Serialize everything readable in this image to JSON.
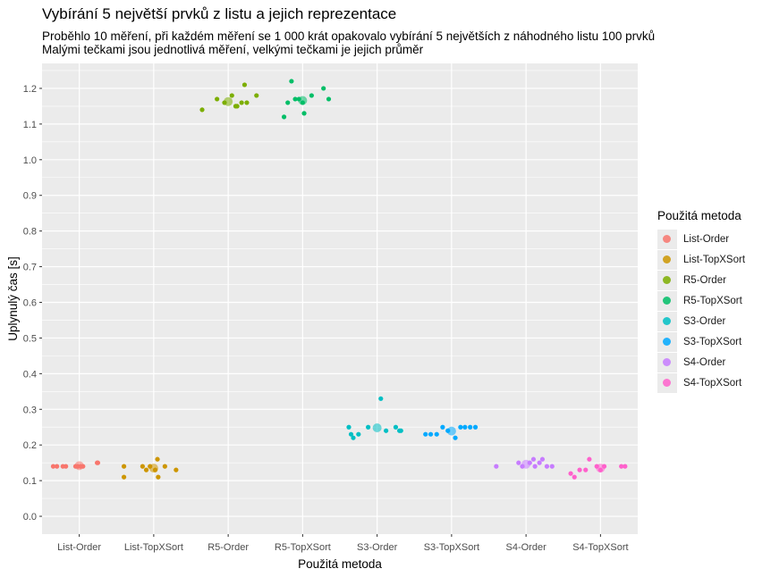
{
  "title": "Vybírání 5 největší prvků z listu a jejich reprezentace",
  "subtitle_lines": [
    "Proběhlo 10 měření, při každém měření se 1 000 krát opakovalo vybírání 5 největších z náhodného listu 100 prvků",
    "Malými tečkami jsou jednotlivá měření, velkými tečkami je jejich průměr"
  ],
  "chart_data": {
    "type": "scatter",
    "title": "Vybírání 5 největší prvků z listu a jejich reprezentace",
    "xlabel": "Použitá metoda",
    "ylabel": "Uplynulý čas [s]",
    "ylim": [
      -0.05,
      1.27
    ],
    "yticks": [
      0.0,
      0.1,
      0.2,
      0.3,
      0.4,
      0.5,
      0.6,
      0.7,
      0.8,
      0.9,
      1.0,
      1.1,
      1.2
    ],
    "ytick_labels": [
      "0.0",
      "0.1",
      "0.2",
      "0.3",
      "0.4",
      "0.5",
      "0.6",
      "0.7",
      "0.8",
      "0.9",
      "1.0",
      "1.1",
      "1.2"
    ],
    "categories": [
      "List-Order",
      "List-TopXSort",
      "R5-Order",
      "R5-TopXSort",
      "S3-Order",
      "S3-TopXSort",
      "S4-Order",
      "S4-TopXSort"
    ],
    "grid": true,
    "legend_title": "Použitá metoda",
    "legend_position": "right",
    "series": [
      {
        "name": "List-Order",
        "color": "#F8766D",
        "points": [
          [
            -0.35,
            0.14
          ],
          [
            -0.3,
            0.14
          ],
          [
            -0.22,
            0.14
          ],
          [
            -0.18,
            0.14
          ],
          [
            -0.02,
            0.14
          ],
          [
            0.02,
            0.14
          ],
          [
            0.05,
            0.14
          ],
          [
            -0.05,
            0.14
          ],
          [
            0.24,
            0.15
          ],
          [
            0.25,
            0.15
          ]
        ],
        "mean": 0.142
      },
      {
        "name": "List-TopXSort",
        "color": "#CD9600",
        "points": [
          [
            -0.4,
            0.14
          ],
          [
            -0.4,
            0.11
          ],
          [
            -0.15,
            0.14
          ],
          [
            -0.1,
            0.13
          ],
          [
            -0.05,
            0.14
          ],
          [
            0.02,
            0.13
          ],
          [
            0.05,
            0.16
          ],
          [
            0.06,
            0.11
          ],
          [
            0.15,
            0.14
          ],
          [
            0.3,
            0.13
          ]
        ],
        "mean": 0.135
      },
      {
        "name": "R5-Order",
        "color": "#7CAE00",
        "points": [
          [
            -0.35,
            1.14
          ],
          [
            -0.15,
            1.17
          ],
          [
            -0.05,
            1.16
          ],
          [
            0.05,
            1.18
          ],
          [
            0.1,
            1.15
          ],
          [
            0.12,
            1.15
          ],
          [
            0.18,
            1.16
          ],
          [
            0.22,
            1.21
          ],
          [
            0.25,
            1.16
          ],
          [
            0.38,
            1.18
          ]
        ],
        "mean": 1.163
      },
      {
        "name": "R5-TopXSort",
        "color": "#00BE67",
        "points": [
          [
            -0.25,
            1.12
          ],
          [
            -0.2,
            1.16
          ],
          [
            -0.15,
            1.22
          ],
          [
            -0.1,
            1.17
          ],
          [
            -0.05,
            1.17
          ],
          [
            0.0,
            1.16
          ],
          [
            0.02,
            1.13
          ],
          [
            0.12,
            1.18
          ],
          [
            0.28,
            1.2
          ],
          [
            0.35,
            1.17
          ]
        ],
        "mean": 1.166
      },
      {
        "name": "S3-Order",
        "color": "#00BFC4",
        "points": [
          [
            -0.38,
            0.25
          ],
          [
            -0.35,
            0.23
          ],
          [
            -0.32,
            0.22
          ],
          [
            -0.25,
            0.23
          ],
          [
            -0.12,
            0.25
          ],
          [
            0.05,
            0.33
          ],
          [
            0.12,
            0.24
          ],
          [
            0.25,
            0.25
          ],
          [
            0.3,
            0.24
          ],
          [
            0.32,
            0.24
          ]
        ],
        "mean": 0.248
      },
      {
        "name": "S3-TopXSort",
        "color": "#00A9FF",
        "points": [
          [
            -0.35,
            0.23
          ],
          [
            -0.28,
            0.23
          ],
          [
            -0.2,
            0.23
          ],
          [
            -0.12,
            0.25
          ],
          [
            -0.05,
            0.24
          ],
          [
            0.05,
            0.22
          ],
          [
            0.12,
            0.25
          ],
          [
            0.18,
            0.25
          ],
          [
            0.25,
            0.25
          ],
          [
            0.32,
            0.25
          ]
        ],
        "mean": 0.239
      },
      {
        "name": "S4-Order",
        "color": "#C77CFF",
        "points": [
          [
            -0.4,
            0.14
          ],
          [
            -0.1,
            0.15
          ],
          [
            -0.05,
            0.14
          ],
          [
            0.05,
            0.15
          ],
          [
            0.1,
            0.16
          ],
          [
            0.12,
            0.14
          ],
          [
            0.18,
            0.15
          ],
          [
            0.22,
            0.16
          ],
          [
            0.28,
            0.14
          ],
          [
            0.35,
            0.14
          ]
        ],
        "mean": 0.146
      },
      {
        "name": "S4-TopXSort",
        "color": "#FF61CC",
        "points": [
          [
            -0.4,
            0.12
          ],
          [
            -0.35,
            0.11
          ],
          [
            -0.28,
            0.13
          ],
          [
            -0.2,
            0.13
          ],
          [
            -0.15,
            0.16
          ],
          [
            -0.05,
            0.14
          ],
          [
            0.0,
            0.13
          ],
          [
            0.05,
            0.14
          ],
          [
            0.28,
            0.14
          ],
          [
            0.33,
            0.14
          ]
        ],
        "mean": 0.135
      }
    ]
  }
}
